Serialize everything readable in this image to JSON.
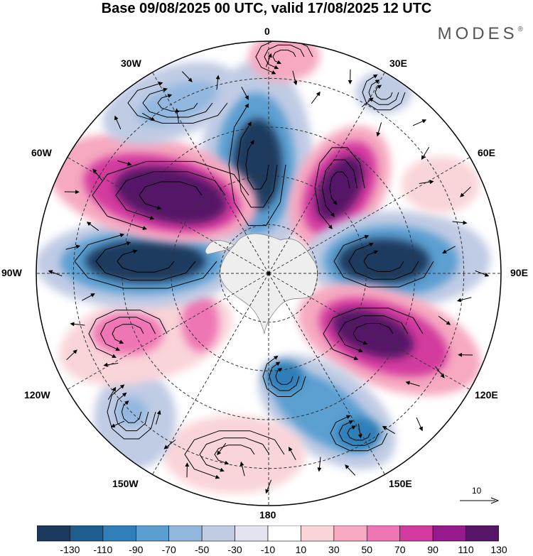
{
  "title": "Base 09/08/2025 00 UTC, valid 17/08/2025 12 UTC",
  "brand": "MODES",
  "brand_mark": "®",
  "longitude_labels": {
    "top": "0",
    "top_right": "30E",
    "right_upper": "60E",
    "right": "90E",
    "right_lower": "120E",
    "bottom_right": "150E",
    "bottom": "180",
    "bottom_left": "150W",
    "left_lower": "120W",
    "left": "90W",
    "left_upper": "60W",
    "top_left": "30W"
  },
  "reference_vector": {
    "value": "10"
  },
  "colorbar": {
    "ticks": [
      "-130",
      "-110",
      "-90",
      "-70",
      "-50",
      "-30",
      "-10",
      "10",
      "30",
      "50",
      "70",
      "90",
      "110",
      "130"
    ],
    "colors": [
      "#1b3a5e",
      "#1e5e8c",
      "#2f7fb8",
      "#5b9fd1",
      "#93b8df",
      "#c0cbe4",
      "#e4e4f1",
      "#ffffff",
      "#f9d4d9",
      "#f6a9c0",
      "#ef76b4",
      "#d33a9f",
      "#971b8c",
      "#571568"
    ]
  },
  "map": {
    "ocean_color": "#ffffff",
    "land_color": "#eeeeee",
    "anomaly_centers": [
      {
        "name": "neg-prime",
        "lon": 5,
        "value": -130
      },
      {
        "name": "pos-50E",
        "lon": 40,
        "value": 130
      },
      {
        "name": "neg-90E",
        "lon": 90,
        "value": -130
      },
      {
        "name": "pos-120E",
        "lon": 120,
        "value": 130
      },
      {
        "name": "neg-150E",
        "lon": 150,
        "value": -110
      },
      {
        "name": "neg-120W",
        "lon": -135,
        "value": -50
      },
      {
        "name": "pos-110W",
        "lon": -110,
        "value": 70
      },
      {
        "name": "neg-90W",
        "lon": -90,
        "value": -130
      },
      {
        "name": "pos-60W",
        "lon": -55,
        "value": 130
      },
      {
        "name": "neg-30W",
        "lon": -25,
        "value": -70
      }
    ]
  }
}
